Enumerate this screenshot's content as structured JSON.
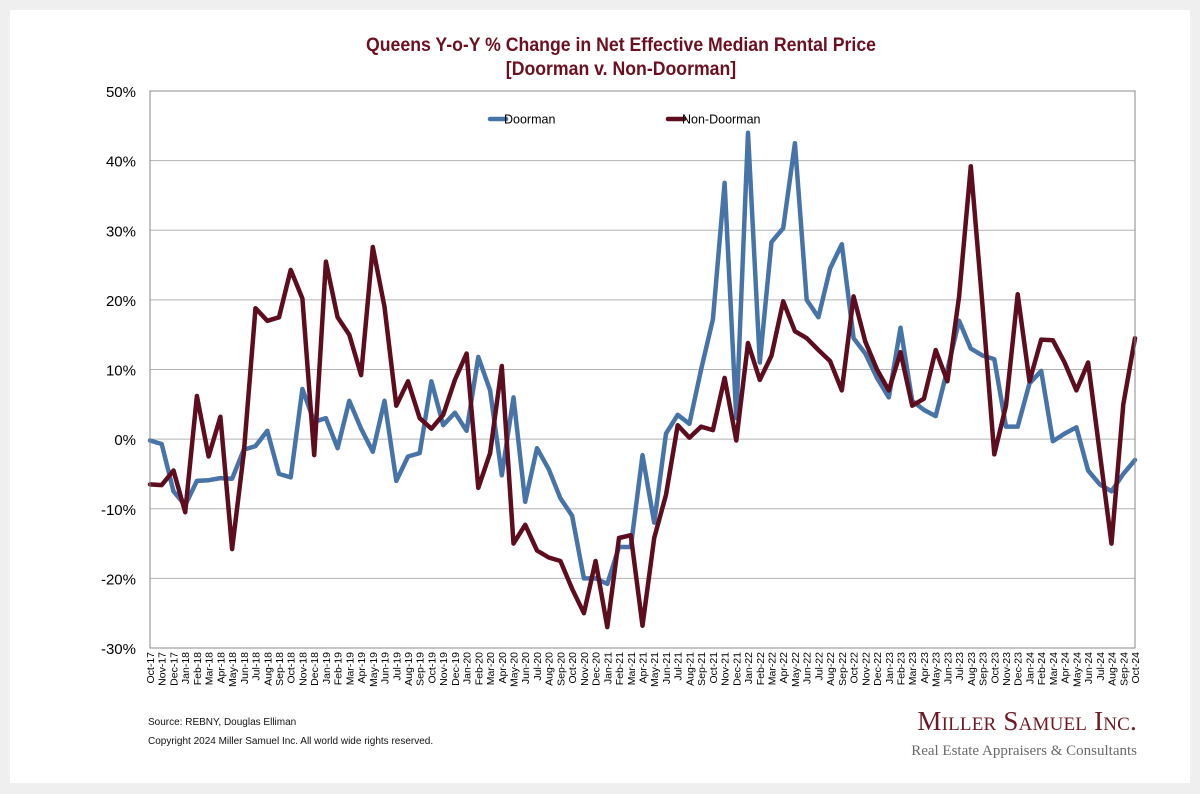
{
  "page": {
    "title_line1": "Queens Y-o-Y % Change in Net Effective Median Rental Price",
    "title_line2": "[Doorman v. Non-Doorman]",
    "source": "Source: REBNY, Douglas Elliman",
    "copyright": "Copyright 2024 Miller Samuel Inc.  All world wide rights reserved.",
    "logo_main": "Miller Samuel Inc.",
    "logo_sub": "Real Estate Appraisers & Consultants"
  },
  "chart_data": {
    "type": "line",
    "title": "Queens Y-o-Y % Change in Net Effective Median Rental Price [Doorman v. Non-Doorman]",
    "xlabel": "",
    "ylabel": "",
    "ylim": [
      -30,
      50
    ],
    "yticks": [
      -30,
      -20,
      -10,
      0,
      10,
      20,
      30,
      40,
      50
    ],
    "ytick_format": "percent",
    "grid": true,
    "legend_position": "top-center",
    "colors": {
      "Doorman": "#4674a8",
      "Non-Doorman": "#5e0d1f"
    },
    "x": [
      "Oct-17",
      "Nov-17",
      "Dec-17",
      "Jan-18",
      "Feb-18",
      "Mar-18",
      "Apr-18",
      "May-18",
      "Jun-18",
      "Jul-18",
      "Aug-18",
      "Sep-18",
      "Oct-18",
      "Nov-18",
      "Dec-18",
      "Jan-19",
      "Feb-19",
      "Mar-19",
      "Apr-19",
      "May-19",
      "Jun-19",
      "Jul-19",
      "Aug-19",
      "Sep-19",
      "Oct-19",
      "Nov-19",
      "Dec-19",
      "Jan-20",
      "Feb-20",
      "Mar-20",
      "Apr-20",
      "May-20",
      "Jun-20",
      "Jul-20",
      "Aug-20",
      "Sep-20",
      "Oct-20",
      "Nov-20",
      "Dec-20",
      "Jan-21",
      "Feb-21",
      "Mar-21",
      "Apr-21",
      "May-21",
      "Jun-21",
      "Jul-21",
      "Aug-21",
      "Sep-21",
      "Oct-21",
      "Nov-21",
      "Dec-21",
      "Jan-22",
      "Feb-22",
      "Mar-22",
      "Apr-22",
      "May-22",
      "Jun-22",
      "Jul-22",
      "Aug-22",
      "Sep-22",
      "Oct-22",
      "Nov-22",
      "Dec-22",
      "Jan-23",
      "Feb-23",
      "Mar-23",
      "Apr-23",
      "May-23",
      "Jun-23",
      "Jul-23",
      "Aug-23",
      "Sep-23",
      "Oct-23",
      "Nov-23",
      "Dec-23",
      "Jan-24",
      "Feb-24",
      "Mar-24",
      "Apr-24",
      "May-24",
      "Jun-24",
      "Jul-24",
      "Aug-24",
      "Sep-24",
      "Oct-24"
    ],
    "series": [
      {
        "name": "Doorman",
        "values": [
          -0.2,
          -0.7,
          -7.5,
          -9.5,
          -6.0,
          -5.9,
          -5.6,
          -5.7,
          -1.5,
          -1.0,
          1.2,
          -5.0,
          -5.5,
          7.2,
          2.5,
          3.0,
          -1.3,
          5.5,
          1.5,
          -1.8,
          5.5,
          -6.0,
          -2.5,
          -2.0,
          8.3,
          2.0,
          3.8,
          1.2,
          11.8,
          7.0,
          -5.2,
          6.0,
          -9.0,
          -1.3,
          -4.3,
          -8.5,
          -11.0,
          -20.0,
          -20.0,
          -20.8,
          -15.5,
          -15.5,
          -2.3,
          -12.0,
          0.8,
          3.5,
          2.2,
          10.0,
          17.2,
          36.8,
          3.0,
          44.0,
          11.0,
          28.3,
          30.3,
          42.5,
          20.0,
          17.5,
          24.5,
          28.0,
          14.5,
          12.3,
          8.8,
          6.0,
          16.0,
          5.5,
          4.2,
          3.3,
          10.0,
          17.0,
          13.0,
          12.0,
          11.5,
          1.8,
          1.8,
          8.0,
          9.8,
          -0.3,
          0.8,
          1.7,
          -4.5,
          -6.5,
          -7.5,
          -5.0,
          -3.0
        ]
      },
      {
        "name": "Non-Doorman",
        "values": [
          -6.5,
          -6.6,
          -4.5,
          -10.5,
          6.2,
          -2.5,
          3.2,
          -15.8,
          -2.0,
          18.8,
          17.0,
          17.5,
          24.3,
          20.2,
          -2.3,
          25.5,
          17.5,
          15.0,
          9.2,
          27.6,
          19.0,
          4.8,
          8.3,
          3.0,
          1.5,
          3.5,
          8.5,
          12.3,
          -7.0,
          -2.0,
          10.5,
          -15.0,
          -12.3,
          -16.0,
          -17.0,
          -17.5,
          -21.5,
          -25.0,
          -17.5,
          -27.0,
          -14.2,
          -13.8,
          -26.8,
          -14.2,
          -8.0,
          2.0,
          0.2,
          1.8,
          1.3,
          8.8,
          -0.2,
          13.8,
          8.5,
          12.0,
          19.8,
          15.5,
          14.5,
          12.8,
          11.2,
          7.0,
          20.5,
          14.0,
          10.0,
          7.0,
          12.5,
          4.8,
          5.8,
          12.8,
          8.3,
          20.5,
          39.2,
          19.0,
          -2.2,
          4.8,
          20.8,
          8.3,
          14.3,
          14.2,
          11.0,
          7.0,
          11.0,
          -2.0,
          -15.0,
          5.0,
          14.5
        ]
      }
    ]
  }
}
